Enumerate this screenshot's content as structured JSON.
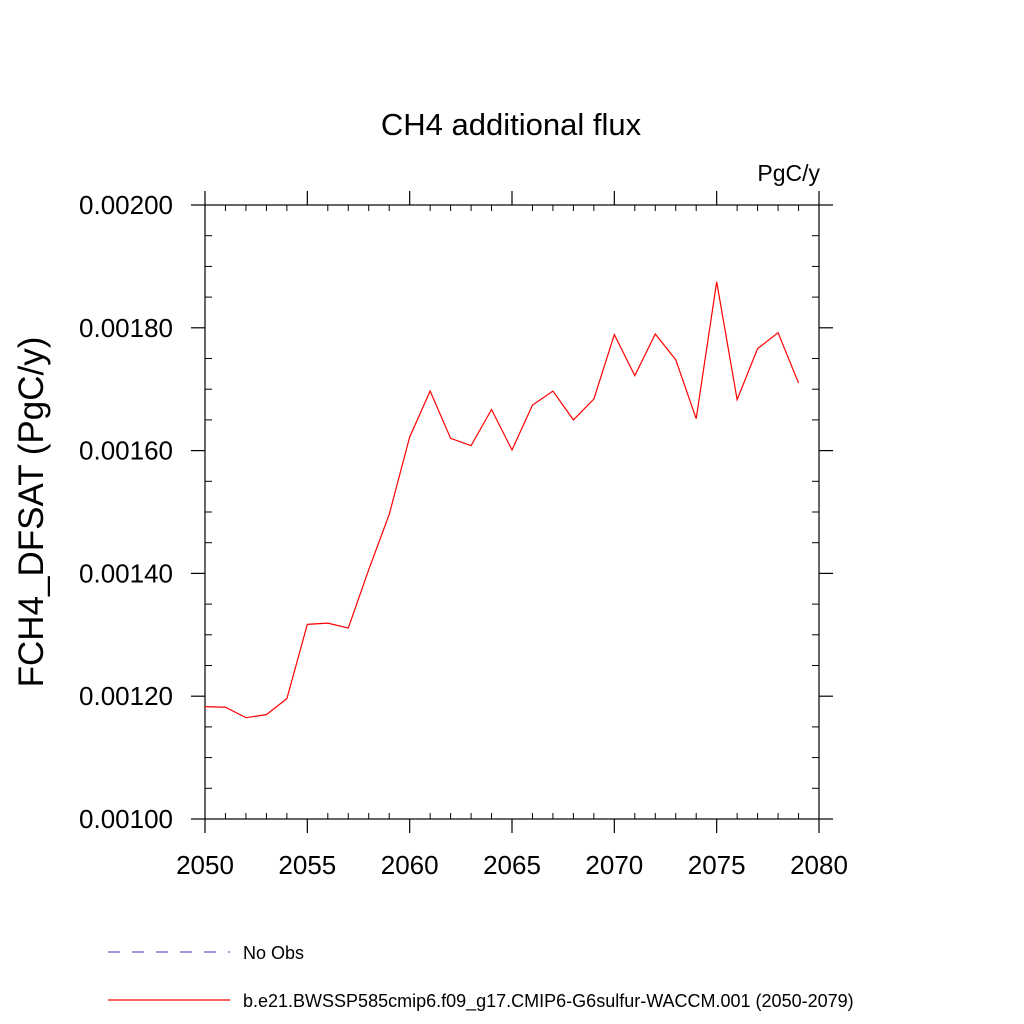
{
  "chart_data": {
    "type": "line",
    "title": "CH4 additional flux",
    "units": "PgC/y",
    "ylabel": "FCH4_DFSAT  (PgC/y)",
    "xlabel": "",
    "xlim": [
      2050,
      2080
    ],
    "ylim": [
      0.001,
      0.002
    ],
    "x_ticks": [
      2050,
      2055,
      2060,
      2065,
      2070,
      2075,
      2080
    ],
    "x_tick_labels": [
      "2050",
      "2055",
      "2060",
      "2065",
      "2070",
      "2075",
      "2080"
    ],
    "y_ticks": [
      0.001,
      0.0012,
      0.0014,
      0.0016,
      0.0018,
      0.002
    ],
    "y_tick_labels": [
      "0.00100",
      "0.00120",
      "0.00140",
      "0.00160",
      "0.00180",
      "0.00200"
    ],
    "grid": false,
    "legend_position": "bottom",
    "series": [
      {
        "name": "b.e21.BWSSP585cmip6.f09_g17.CMIP6-G6sulfur-WACCM.001 (2050-2079)",
        "color": "#ff0000",
        "dash": "solid",
        "x": [
          2050,
          2051,
          2052,
          2053,
          2054,
          2055,
          2056,
          2057,
          2058,
          2059,
          2060,
          2061,
          2062,
          2063,
          2064,
          2065,
          2066,
          2067,
          2068,
          2069,
          2070,
          2071,
          2072,
          2073,
          2074,
          2075,
          2076,
          2077,
          2078,
          2079
        ],
        "y": [
          0.001183,
          0.001182,
          0.001165,
          0.00117,
          0.001196,
          0.001317,
          0.001319,
          0.001311,
          0.001406,
          0.001496,
          0.001622,
          0.001697,
          0.00162,
          0.001608,
          0.001667,
          0.001601,
          0.001674,
          0.001697,
          0.00165,
          0.001684,
          0.001789,
          0.001722,
          0.00179,
          0.001748,
          0.001652,
          0.001875,
          0.001683,
          0.001766,
          0.001792,
          0.00171
        ]
      }
    ],
    "legend": [
      {
        "label": "No Obs",
        "color": "#6a5acd",
        "dash": "dashed"
      },
      {
        "label": "b.e21.BWSSP585cmip6.f09_g17.CMIP6-G6sulfur-WACCM.001 (2050-2079)",
        "color": "#ff0000",
        "dash": "solid"
      }
    ]
  }
}
